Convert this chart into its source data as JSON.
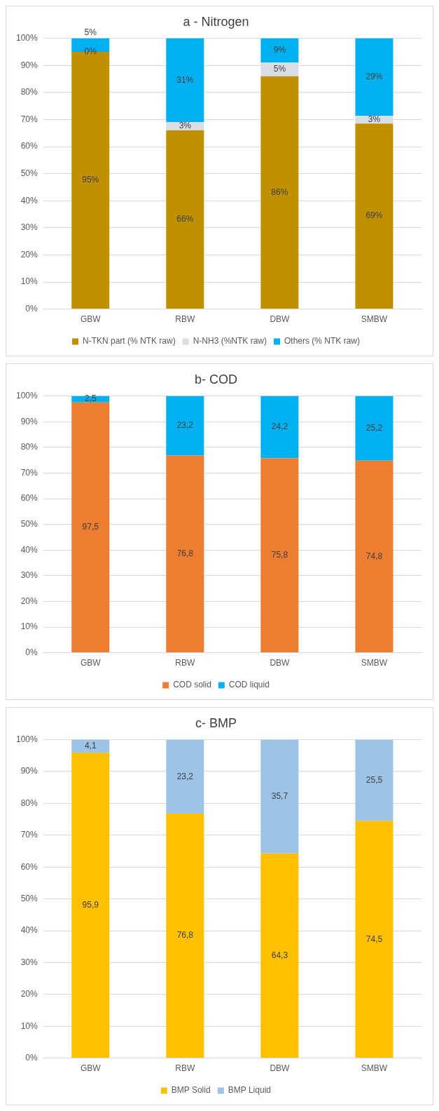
{
  "chart_data": [
    {
      "type": "bar",
      "title": "a - Nitrogen",
      "stacked": true,
      "categories": [
        "GBW",
        "RBW",
        "DBW",
        "SMBW"
      ],
      "ylim": [
        0,
        100
      ],
      "yticks": [
        {
          "value": 0,
          "label": "0%"
        },
        {
          "value": 10,
          "label": "10%"
        },
        {
          "value": 20,
          "label": "20%"
        },
        {
          "value": 30,
          "label": "30%"
        },
        {
          "value": 40,
          "label": "40%"
        },
        {
          "value": 50,
          "label": "50%"
        },
        {
          "value": 60,
          "label": "60%"
        },
        {
          "value": 70,
          "label": "70%"
        },
        {
          "value": 80,
          "label": "80%"
        },
        {
          "value": 90,
          "label": "90%"
        },
        {
          "value": 100,
          "label": "100%"
        }
      ],
      "grid": "y",
      "legend": "bottom",
      "series": [
        {
          "name": "N-TKN part (% NTK raw)",
          "color": "#bf9000",
          "values": [
            95,
            66,
            86,
            68.5
          ],
          "value_labels": [
            "95%",
            "66%",
            "86%",
            "69%"
          ]
        },
        {
          "name": "N-NH3 (%NTK raw)",
          "color": "#d9dde4",
          "values": [
            0,
            3,
            5,
            2.9
          ],
          "value_labels": [
            "0%",
            "3%",
            "5%",
            "3%"
          ]
        },
        {
          "name": "Others (% NTK raw)",
          "color": "#00b0f0",
          "values": [
            5,
            31,
            9,
            28.6
          ],
          "value_labels": [
            "5%",
            "31%",
            "9%",
            "29%"
          ]
        }
      ]
    },
    {
      "type": "bar",
      "title": "b- COD",
      "stacked": true,
      "categories": [
        "GBW",
        "RBW",
        "DBW",
        "SMBW"
      ],
      "ylim": [
        0,
        100
      ],
      "yticks": [
        {
          "value": 0,
          "label": "0%"
        },
        {
          "value": 10,
          "label": "10%"
        },
        {
          "value": 20,
          "label": "20%"
        },
        {
          "value": 30,
          "label": "30%"
        },
        {
          "value": 40,
          "label": "40%"
        },
        {
          "value": 50,
          "label": "50%"
        },
        {
          "value": 60,
          "label": "60%"
        },
        {
          "value": 70,
          "label": "70%"
        },
        {
          "value": 80,
          "label": "80%"
        },
        {
          "value": 90,
          "label": "90%"
        },
        {
          "value": 100,
          "label": "100%"
        }
      ],
      "grid": "y",
      "legend": "bottom",
      "series": [
        {
          "name": "COD solid",
          "color": "#ed7d31",
          "values": [
            97.5,
            76.8,
            75.8,
            74.8
          ],
          "value_labels": [
            "97,5",
            "76,8",
            "75,8",
            "74,8"
          ]
        },
        {
          "name": "COD liquid",
          "color": "#00b0f0",
          "values": [
            2.5,
            23.2,
            24.2,
            25.2
          ],
          "value_labels": [
            "2,5",
            "23,2",
            "24,2",
            "25,2"
          ]
        }
      ]
    },
    {
      "type": "bar",
      "title": "c- BMP",
      "stacked": true,
      "categories": [
        "GBW",
        "RBW",
        "DBW",
        "SMBW"
      ],
      "ylim": [
        0,
        100
      ],
      "yticks": [
        {
          "value": 0,
          "label": "0%"
        },
        {
          "value": 10,
          "label": "10%"
        },
        {
          "value": 20,
          "label": "20%"
        },
        {
          "value": 30,
          "label": "30%"
        },
        {
          "value": 40,
          "label": "40%"
        },
        {
          "value": 50,
          "label": "50%"
        },
        {
          "value": 60,
          "label": "60%"
        },
        {
          "value": 70,
          "label": "70%"
        },
        {
          "value": 80,
          "label": "80%"
        },
        {
          "value": 90,
          "label": "90%"
        },
        {
          "value": 100,
          "label": "100%"
        }
      ],
      "grid": "y",
      "legend": "bottom",
      "series": [
        {
          "name": "BMP Solid",
          "color": "#ffc000",
          "values": [
            95.9,
            76.8,
            64.3,
            74.5
          ],
          "value_labels": [
            "95,9",
            "76,8",
            "64,3",
            "74,5"
          ]
        },
        {
          "name": "BMP Liquid",
          "color": "#9dc3e6",
          "values": [
            4.1,
            23.2,
            35.7,
            25.5
          ],
          "value_labels": [
            "4,1",
            "23,2",
            "35,7",
            "25,5"
          ]
        }
      ]
    }
  ]
}
